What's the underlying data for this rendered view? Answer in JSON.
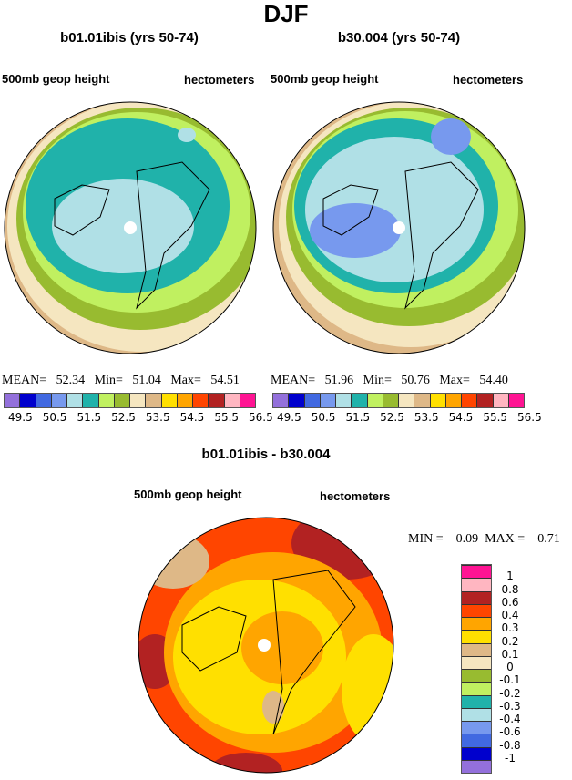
{
  "title": "DJF",
  "colors": [
    "#9370DB",
    "#0000CD",
    "#4169E1",
    "#7799EE",
    "#B0E0E6",
    "#20B2AA",
    "#C0F060",
    "#98BB30",
    "#F5E6C0",
    "#DEB887",
    "#FFE000",
    "#FFA500",
    "#FF4500",
    "#B22222",
    "#FFB6C1",
    "#FF1493"
  ],
  "panels": [
    {
      "title": "b01.01ibis (yrs 50-74)",
      "left_label": "500mb geop height",
      "right_label": "hectometers",
      "stats": {
        "mean_label": "MEAN=",
        "mean": "52.34",
        "min_label": "Min=",
        "min": "51.04",
        "max_label": "Max=",
        "max": "54.51"
      }
    },
    {
      "title": "b30.004 (yrs 50-74)",
      "left_label": "500mb geop height",
      "right_label": "hectometers",
      "stats": {
        "mean_label": "MEAN=",
        "mean": "51.96",
        "min_label": "Min=",
        "min": "50.76",
        "max_label": "Max=",
        "max": "54.40"
      }
    }
  ],
  "colorbar_ticks": [
    "49.5",
    "50.5",
    "51.5",
    "52.5",
    "53.5",
    "54.5",
    "55.5",
    "56.5"
  ],
  "diff": {
    "title": "b01.01ibis - b30.004",
    "left_label": "500mb geop height",
    "right_label": "hectometers",
    "min_label": "MIN =",
    "min": "0.09",
    "max_label": "MAX =",
    "max": "0.71",
    "ticks": [
      "-1",
      "-0.8",
      "-0.6",
      "-0.4",
      "-0.3",
      "-0.2",
      "-0.1",
      "0",
      "0.1",
      "0.2",
      "0.3",
      "0.4",
      "0.6",
      "0.8",
      "1"
    ]
  }
}
